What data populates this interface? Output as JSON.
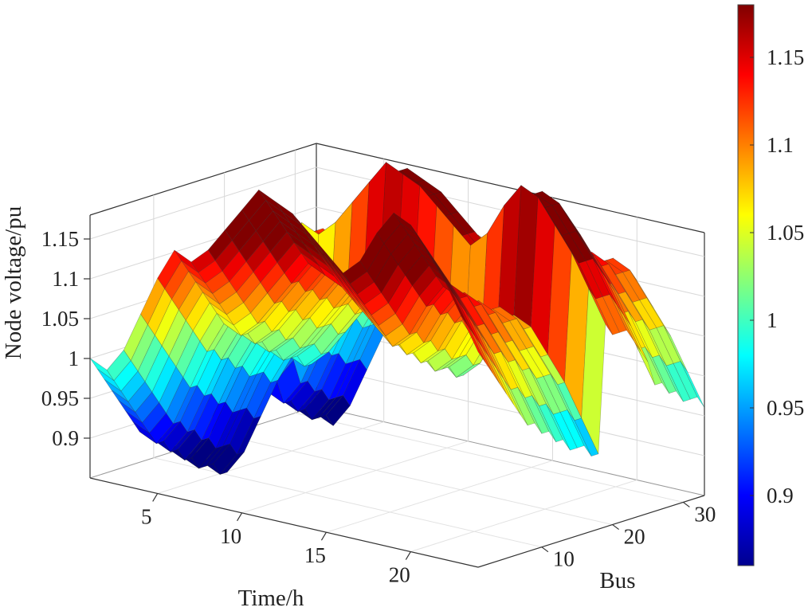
{
  "chart_data": {
    "type": "surface3d",
    "title": "",
    "xlabel": "Time/h",
    "ylabel": "Bus",
    "zlabel": "Node voltage/pu",
    "x_range": [
      1,
      24
    ],
    "y_range": [
      1,
      33
    ],
    "z_range": [
      0.85,
      1.18
    ],
    "x_ticks": [
      5,
      10,
      15,
      20
    ],
    "y_ticks": [
      10,
      20,
      30
    ],
    "z_ticks": [
      0.9,
      0.95,
      1,
      1.05,
      1.1,
      1.15
    ],
    "z_tick_labels": [
      "0.9",
      "0.95",
      "1",
      "1.05",
      "1.1",
      "1.15"
    ],
    "x_tick_labels": [
      "5",
      "10",
      "15",
      "20"
    ],
    "y_tick_labels": [
      "10",
      "20",
      "30"
    ],
    "colorbar": {
      "range": [
        0.86,
        1.18
      ],
      "ticks": [
        0.9,
        0.95,
        1,
        1.05,
        1.1,
        1.15
      ],
      "tick_labels": [
        "0.9",
        "0.95",
        "1",
        "1.05",
        "1.1",
        "1.15"
      ],
      "colormap": "jet"
    },
    "grid": true,
    "time_profile": [
      0.9,
      0.89,
      0.92,
      0.97,
      1.02,
      1.06,
      1.05,
      1.07,
      1.1,
      1.13,
      1.16,
      1.15,
      1.14,
      1.12,
      1.1,
      1.08,
      1.1,
      1.14,
      1.17,
      1.16,
      1.13,
      1.1,
      1.06,
      1.02
    ],
    "bus_profile": [
      1.0,
      0.99,
      0.98,
      0.97,
      0.96,
      0.95,
      0.94,
      0.93,
      0.93,
      0.92,
      0.92,
      0.91,
      0.91,
      0.9,
      0.9,
      0.9,
      0.89,
      0.89,
      0.99,
      0.98,
      0.98,
      0.98,
      0.97,
      0.96,
      0.95,
      0.93,
      0.93,
      0.92,
      0.92,
      0.91,
      0.91,
      0.91,
      0.9
    ]
  }
}
